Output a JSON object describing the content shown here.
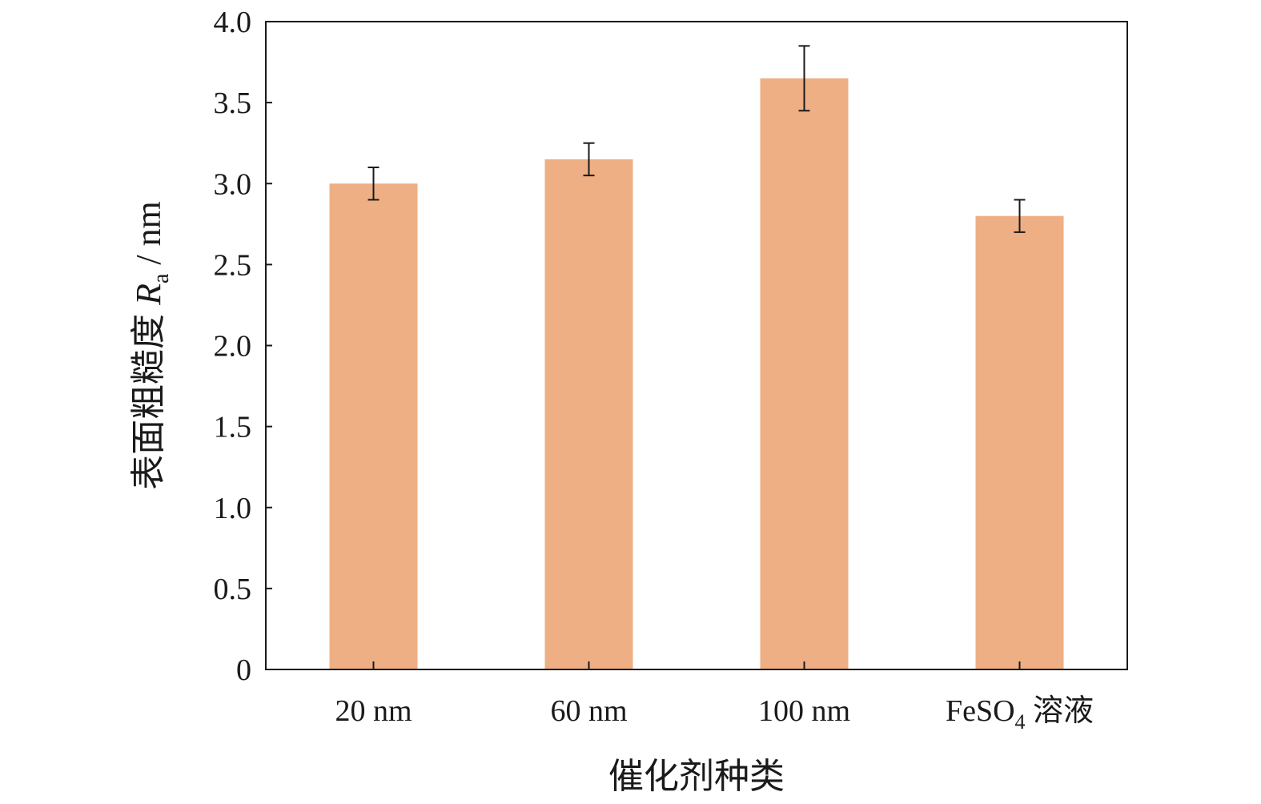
{
  "chart_data": {
    "type": "bar",
    "categories": [
      "20 nm",
      "60 nm",
      "100 nm",
      "FeSO4 溶液"
    ],
    "category_parts": [
      {
        "main": "20 nm",
        "sub": "",
        "rest": ""
      },
      {
        "main": "60 nm",
        "sub": "",
        "rest": ""
      },
      {
        "main": "100 nm",
        "sub": "",
        "rest": ""
      },
      {
        "main": "FeSO",
        "sub": "4",
        "rest": " 溶液"
      }
    ],
    "values": [
      3.0,
      3.15,
      3.65,
      2.8
    ],
    "errors": [
      0.1,
      0.1,
      0.2,
      0.1
    ],
    "title": "",
    "xlabel": "催化剂种类",
    "ylabel": {
      "prefix": "表面粗糙度 ",
      "symbol": "R",
      "subscript": "a",
      "unit": " / nm"
    },
    "ylim": [
      0,
      4.0
    ],
    "yticks": [
      0,
      0.5,
      1.0,
      1.5,
      2.0,
      2.5,
      3.0,
      3.5,
      4.0
    ],
    "ytick_labels": [
      "0",
      "0.5",
      "1.0",
      "1.5",
      "2.0",
      "2.5",
      "3.0",
      "3.5",
      "4.0"
    ],
    "grid": false,
    "legend": "none",
    "bar_color": "#eeaf84",
    "axis_color": "#1a1a1a"
  }
}
